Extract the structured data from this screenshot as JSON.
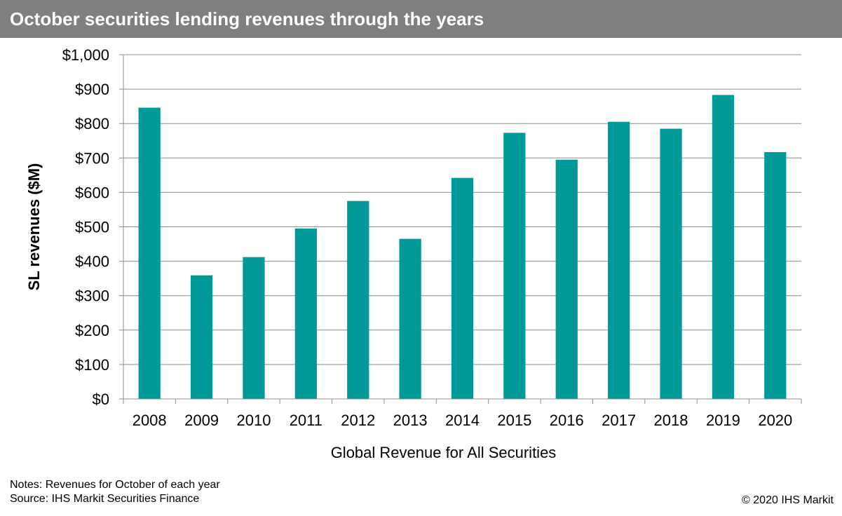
{
  "header": {
    "title": "October securities lending revenues through the years",
    "background_color": "#7f7f7f",
    "text_color": "#ffffff"
  },
  "chart_data": {
    "type": "bar",
    "categories": [
      "2008",
      "2009",
      "2010",
      "2011",
      "2012",
      "2013",
      "2014",
      "2015",
      "2016",
      "2017",
      "2018",
      "2019",
      "2020"
    ],
    "values": [
      846,
      359,
      412,
      495,
      575,
      465,
      642,
      773,
      695,
      805,
      785,
      883,
      717
    ],
    "xlabel": "Global Revenue for All Securities",
    "ylabel": "SL revenues ($M)",
    "ylim": [
      0,
      1000
    ],
    "yticks": [
      0,
      100,
      200,
      300,
      400,
      500,
      600,
      700,
      800,
      900,
      1000
    ],
    "ytick_labels": [
      "$0",
      "$100",
      "$200",
      "$300",
      "$400",
      "$500",
      "$600",
      "$700",
      "$800",
      "$900",
      "$1,000"
    ],
    "bar_color": "#009999",
    "grid": true,
    "legend": false
  },
  "footer": {
    "notes": "Notes: Revenues for October of each year",
    "source": "Source: IHS Markit  Securities Finance",
    "copyright": "© 2020 IHS Markit"
  }
}
